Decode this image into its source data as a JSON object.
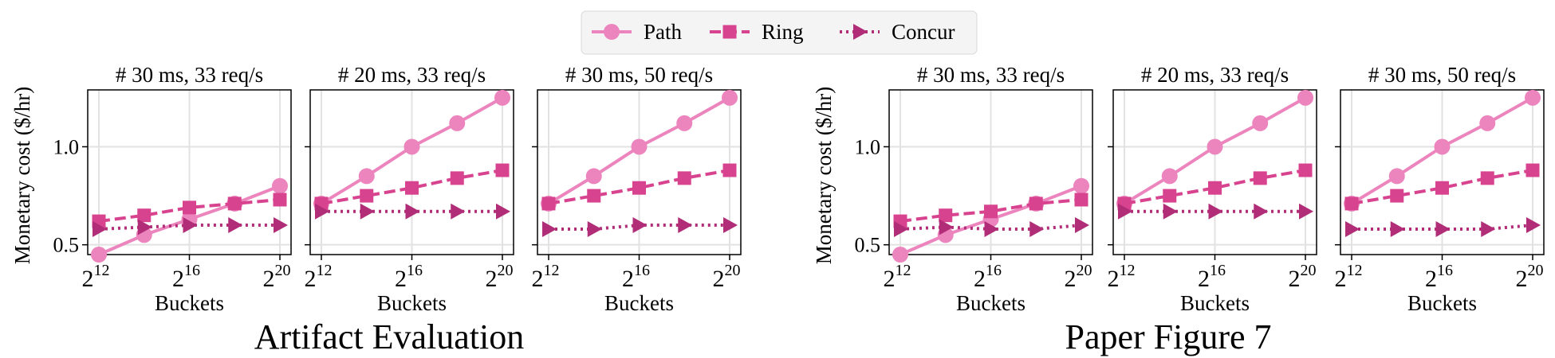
{
  "legend": {
    "entries": [
      {
        "label": "Path",
        "marker": "circle",
        "dash": "solid"
      },
      {
        "label": "Ring",
        "marker": "square",
        "dash": "dashed"
      },
      {
        "label": "Concur",
        "marker": "triangle-right",
        "dash": "dotted"
      }
    ]
  },
  "groups": [
    {
      "title": "Artifact Evaluation"
    },
    {
      "title": "Paper Figure 7"
    }
  ],
  "chart_data": [
    {
      "group": 0,
      "type": "line",
      "title": "# 30 ms, 33 req/s",
      "xlabel": "Buckets",
      "ylabel": "Monetary cost ($/hr)",
      "x": [
        12,
        14,
        16,
        18,
        20
      ],
      "xscale": "log2",
      "xticks": [
        "12",
        "16",
        "20"
      ],
      "ylim": [
        0.45,
        1.29
      ],
      "yticks": [
        "0.5",
        "1.0"
      ],
      "series": [
        {
          "name": "Path",
          "values": [
            0.45,
            0.55,
            0.63,
            0.71,
            0.8
          ]
        },
        {
          "name": "Ring",
          "values": [
            0.62,
            0.65,
            0.69,
            0.71,
            0.73
          ]
        },
        {
          "name": "Concur",
          "values": [
            0.58,
            0.59,
            0.6,
            0.6,
            0.6
          ]
        }
      ]
    },
    {
      "group": 0,
      "type": "line",
      "title": "# 20 ms, 33 req/s",
      "xlabel": "Buckets",
      "ylabel": "",
      "x": [
        12,
        14,
        16,
        18,
        20
      ],
      "xscale": "log2",
      "xticks": [
        "12",
        "16",
        "20"
      ],
      "ylim": [
        0.45,
        1.29
      ],
      "yticks": [],
      "series": [
        {
          "name": "Path",
          "values": [
            0.71,
            0.85,
            1.0,
            1.12,
            1.25
          ]
        },
        {
          "name": "Ring",
          "values": [
            0.71,
            0.75,
            0.79,
            0.84,
            0.88
          ]
        },
        {
          "name": "Concur",
          "values": [
            0.67,
            0.67,
            0.67,
            0.67,
            0.67
          ]
        }
      ]
    },
    {
      "group": 0,
      "type": "line",
      "title": "# 30 ms, 50 req/s",
      "xlabel": "Buckets",
      "ylabel": "",
      "x": [
        12,
        14,
        16,
        18,
        20
      ],
      "xscale": "log2",
      "xticks": [
        "12",
        "16",
        "20"
      ],
      "ylim": [
        0.45,
        1.29
      ],
      "yticks": [],
      "series": [
        {
          "name": "Path",
          "values": [
            0.71,
            0.85,
            1.0,
            1.12,
            1.25
          ]
        },
        {
          "name": "Ring",
          "values": [
            0.71,
            0.75,
            0.79,
            0.84,
            0.88
          ]
        },
        {
          "name": "Concur",
          "values": [
            0.58,
            0.58,
            0.6,
            0.6,
            0.6
          ]
        }
      ]
    },
    {
      "group": 1,
      "type": "line",
      "title": "# 30 ms, 33 req/s",
      "xlabel": "Buckets",
      "ylabel": "Monetary cost ($/hr)",
      "x": [
        12,
        14,
        16,
        18,
        20
      ],
      "xscale": "log2",
      "xticks": [
        "12",
        "16",
        "20"
      ],
      "ylim": [
        0.45,
        1.29
      ],
      "yticks": [
        "0.5",
        "1.0"
      ],
      "series": [
        {
          "name": "Path",
          "values": [
            0.45,
            0.55,
            0.63,
            0.71,
            0.8
          ]
        },
        {
          "name": "Ring",
          "values": [
            0.62,
            0.65,
            0.67,
            0.71,
            0.73
          ]
        },
        {
          "name": "Concur",
          "values": [
            0.58,
            0.59,
            0.58,
            0.58,
            0.6
          ]
        }
      ]
    },
    {
      "group": 1,
      "type": "line",
      "title": "# 20 ms, 33 req/s",
      "xlabel": "Buckets",
      "ylabel": "",
      "x": [
        12,
        14,
        16,
        18,
        20
      ],
      "xscale": "log2",
      "xticks": [
        "12",
        "16",
        "20"
      ],
      "ylim": [
        0.45,
        1.29
      ],
      "yticks": [],
      "series": [
        {
          "name": "Path",
          "values": [
            0.71,
            0.85,
            1.0,
            1.12,
            1.25
          ]
        },
        {
          "name": "Ring",
          "values": [
            0.71,
            0.75,
            0.79,
            0.84,
            0.88
          ]
        },
        {
          "name": "Concur",
          "values": [
            0.67,
            0.67,
            0.67,
            0.67,
            0.67
          ]
        }
      ]
    },
    {
      "group": 1,
      "type": "line",
      "title": "# 30 ms, 50 req/s",
      "xlabel": "Buckets",
      "ylabel": "",
      "x": [
        12,
        14,
        16,
        18,
        20
      ],
      "xscale": "log2",
      "xticks": [
        "12",
        "16",
        "20"
      ],
      "ylim": [
        0.45,
        1.29
      ],
      "yticks": [],
      "series": [
        {
          "name": "Path",
          "values": [
            0.71,
            0.85,
            1.0,
            1.12,
            1.25
          ]
        },
        {
          "name": "Ring",
          "values": [
            0.71,
            0.75,
            0.79,
            0.84,
            0.88
          ]
        },
        {
          "name": "Concur",
          "values": [
            0.58,
            0.58,
            0.58,
            0.58,
            0.6
          ]
        }
      ]
    }
  ],
  "colors": {
    "Path": "#ec84bd",
    "Ring": "#d8438f",
    "Concur": "#b12d78",
    "grid": "#e2e2e2",
    "legend_bg": "#f4f4f4"
  }
}
